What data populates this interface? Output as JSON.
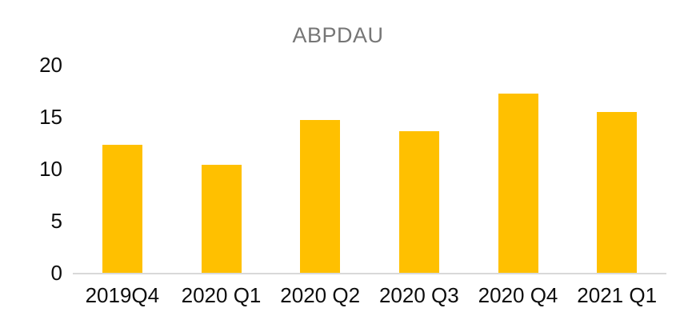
{
  "chart_data": {
    "type": "bar",
    "title": "ABPDAU",
    "categories": [
      "2019Q4",
      "2020 Q1",
      "2020 Q2",
      "2020 Q3",
      "2020 Q4",
      "2021 Q1"
    ],
    "values": [
      12.3,
      10.4,
      14.7,
      13.6,
      17.2,
      15.5
    ],
    "xlabel": "",
    "ylabel": "",
    "ylim": [
      0,
      20
    ],
    "yticks": [
      0,
      5,
      10,
      15,
      20
    ],
    "grid": false,
    "legend": false,
    "colors": {
      "bar_fill": "#FFC000",
      "title_text": "#767676",
      "tick_text": "#0D0D0D",
      "axis_line": "#D9D9D9",
      "background": "#FFFFFF"
    }
  }
}
